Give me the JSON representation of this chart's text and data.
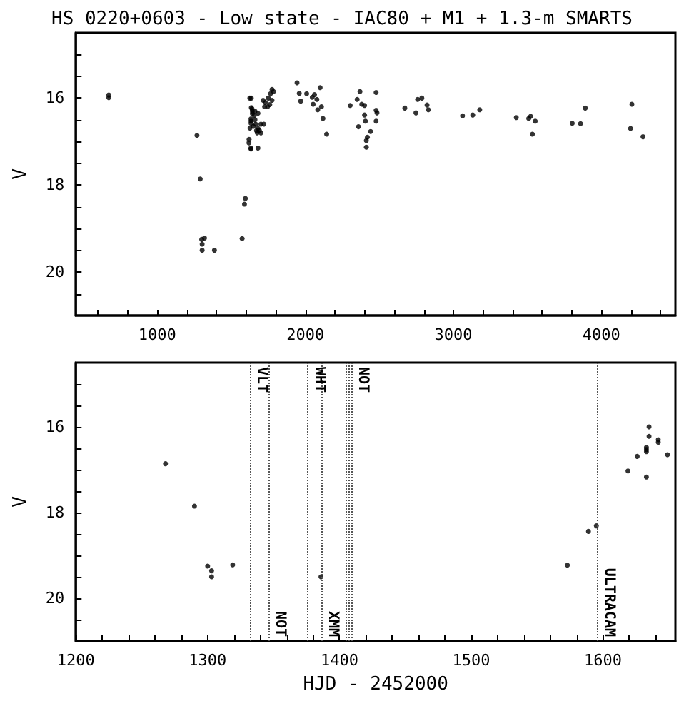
{
  "chart_data": [
    {
      "type": "scatter",
      "title": "HS 0220+0603 - Low state - IAC80 + M1 + 1.3-m SMARTS",
      "ylabel": "V",
      "xlim": [
        450,
        4500
      ],
      "ylim": [
        21,
        14.5
      ],
      "grid": false,
      "marker": "circle",
      "xticks": [
        {
          "value": 600,
          "label": null
        },
        {
          "value": 800,
          "label": null
        },
        1000,
        {
          "value": 1200,
          "label": null
        },
        {
          "value": 1400,
          "label": null
        },
        {
          "value": 1600,
          "label": null
        },
        {
          "value": 1800,
          "label": null
        },
        2000,
        {
          "value": 2200,
          "label": null
        },
        {
          "value": 2400,
          "label": null
        },
        {
          "value": 2600,
          "label": null
        },
        {
          "value": 2800,
          "label": null
        },
        3000,
        {
          "value": 3200,
          "label": null
        },
        {
          "value": 3400,
          "label": null
        },
        {
          "value": 3600,
          "label": null
        },
        {
          "value": 3800,
          "label": null
        },
        4000,
        {
          "value": 4200,
          "label": null
        },
        {
          "value": 4400,
          "label": null
        }
      ],
      "yticks": [
        {
          "value": 15,
          "label": null
        },
        {
          "value": 15.5,
          "label": null
        },
        16,
        {
          "value": 16.5,
          "label": null
        },
        {
          "value": 17,
          "label": null
        },
        {
          "value": 17.5,
          "label": null
        },
        18,
        {
          "value": 18.5,
          "label": null
        },
        {
          "value": 19,
          "label": null
        },
        {
          "value": 19.5,
          "label": null
        },
        20,
        {
          "value": 20.5,
          "label": null
        }
      ],
      "series": [
        {
          "color": "#000000",
          "x": [
            672,
            672,
            1268,
            1290,
            1300,
            1303,
            1303,
            1319,
            1386,
            1573,
            1589,
            1595,
            1619,
            1626,
            1633,
            1633,
            1633,
            1633,
            1635,
            1635,
            1642,
            1642,
            1649,
            1625,
            1640,
            1655,
            1660,
            1665,
            1670,
            1675,
            1680,
            1690,
            1700,
            1660,
            1680,
            1700,
            1620,
            1632,
            1680,
            1725,
            1715,
            1730,
            1750,
            1765,
            1775,
            1785,
            1760,
            1775,
            1745,
            1720,
            1944,
            1959,
            1969,
            2009,
            2047,
            2062,
            2078,
            2053,
            2084,
            2100,
            2109,
            2119,
            2144,
            2303,
            2350,
            2369,
            2359,
            2381,
            2400,
            2400,
            2406,
            2419,
            2412,
            2412,
            2441,
            2478,
            2478,
            2484,
            2478,
            2672,
            2747,
            2759,
            2787,
            2822,
            2831,
            3062,
            3131,
            3178,
            3425,
            3509,
            3522,
            3553,
            3534,
            3803,
            3859,
            3891,
            4197,
            4206,
            4281
          ],
          "values": [
            15.93,
            15.99,
            16.86,
            17.86,
            19.25,
            19.36,
            19.5,
            19.22,
            19.5,
            19.23,
            18.44,
            18.31,
            17.03,
            16.69,
            16.48,
            16.53,
            16.58,
            17.17,
            16.0,
            16.22,
            16.3,
            16.36,
            16.65,
            16.0,
            16.25,
            16.4,
            16.5,
            16.6,
            16.75,
            16.8,
            16.7,
            16.75,
            16.8,
            16.3,
            16.35,
            16.6,
            16.95,
            17.15,
            17.15,
            16.2,
            16.05,
            16.1,
            16.0,
            15.9,
            15.8,
            15.85,
            16.15,
            16.05,
            16.2,
            16.6,
            15.65,
            15.89,
            16.07,
            15.9,
            15.98,
            15.92,
            16.03,
            16.14,
            16.27,
            15.76,
            16.2,
            16.47,
            16.83,
            16.17,
            16.03,
            15.85,
            16.66,
            16.14,
            16.17,
            16.39,
            16.53,
            16.9,
            16.98,
            17.13,
            16.77,
            15.87,
            16.28,
            16.34,
            16.53,
            16.23,
            16.34,
            16.03,
            16.0,
            16.16,
            16.27,
            16.41,
            16.39,
            16.27,
            16.45,
            16.47,
            16.42,
            16.53,
            16.83,
            16.58,
            16.59,
            16.23,
            16.7,
            16.14,
            16.89
          ]
        }
      ]
    },
    {
      "type": "scatter",
      "xlabel": "HJD - 2452000",
      "ylabel": "V",
      "xlim": [
        1200,
        1655
      ],
      "ylim": [
        21,
        14.5
      ],
      "grid": false,
      "marker": "circle",
      "xticks": [
        1200,
        {
          "value": 1220,
          "label": null
        },
        {
          "value": 1240,
          "label": null
        },
        {
          "value": 1260,
          "label": null
        },
        {
          "value": 1280,
          "label": null
        },
        1300,
        {
          "value": 1320,
          "label": null
        },
        {
          "value": 1340,
          "label": null
        },
        {
          "value": 1360,
          "label": null
        },
        {
          "value": 1380,
          "label": null
        },
        1400,
        {
          "value": 1420,
          "label": null
        },
        {
          "value": 1440,
          "label": null
        },
        {
          "value": 1460,
          "label": null
        },
        {
          "value": 1480,
          "label": null
        },
        1500,
        {
          "value": 1520,
          "label": null
        },
        {
          "value": 1540,
          "label": null
        },
        {
          "value": 1560,
          "label": null
        },
        {
          "value": 1580,
          "label": null
        },
        1600,
        {
          "value": 1620,
          "label": null
        },
        {
          "value": 1640,
          "label": null
        }
      ],
      "yticks": [
        {
          "value": 15,
          "label": null
        },
        {
          "value": 15.5,
          "label": null
        },
        16,
        {
          "value": 16.5,
          "label": null
        },
        {
          "value": 17,
          "label": null
        },
        {
          "value": 17.5,
          "label": null
        },
        18,
        {
          "value": 18.5,
          "label": null
        },
        {
          "value": 19,
          "label": null
        },
        {
          "value": 19.5,
          "label": null
        },
        20,
        {
          "value": 20.5,
          "label": null
        }
      ],
      "ref_lines": [
        {
          "axis": "x",
          "value": 1332,
          "label": "VLT",
          "color": "#555555",
          "line_style": "dotted"
        },
        {
          "axis": "x",
          "value": 1346,
          "label": "NOT",
          "color": "#555555",
          "line_style": "dotted"
        },
        {
          "axis": "x",
          "value": 1376,
          "label": "WHT",
          "color": "#555555",
          "line_style": "dotted"
        },
        {
          "axis": "x",
          "value": 1386,
          "label": "XMM",
          "color": "#555555",
          "line_style": "dotted"
        },
        {
          "axis": "x",
          "value": 1405,
          "label": null,
          "color": "#555555",
          "line_style": "dotted"
        },
        {
          "axis": "x",
          "value": 1407,
          "label": null,
          "color": "#555555",
          "line_style": "dotted"
        },
        {
          "axis": "x",
          "value": 1409,
          "label": "NOT",
          "color": "#555555",
          "line_style": "dotted"
        },
        {
          "axis": "x",
          "value": 1596,
          "label": "ULTRACAM",
          "color": "#555555",
          "line_style": "dotted"
        }
      ],
      "series": [
        {
          "color": "#000000",
          "x": [
            1268,
            1290,
            1300,
            1303,
            1303,
            1319,
            1386,
            1573,
            1589,
            1595,
            1619,
            1626,
            1633,
            1633,
            1633,
            1633,
            1635,
            1635,
            1642,
            1642,
            1649
          ],
          "values": [
            16.86,
            17.85,
            19.25,
            19.36,
            19.5,
            19.22,
            19.5,
            19.23,
            18.44,
            18.31,
            17.03,
            16.69,
            16.48,
            16.53,
            16.58,
            17.17,
            16.0,
            16.22,
            16.3,
            16.36,
            16.65
          ]
        }
      ]
    }
  ]
}
